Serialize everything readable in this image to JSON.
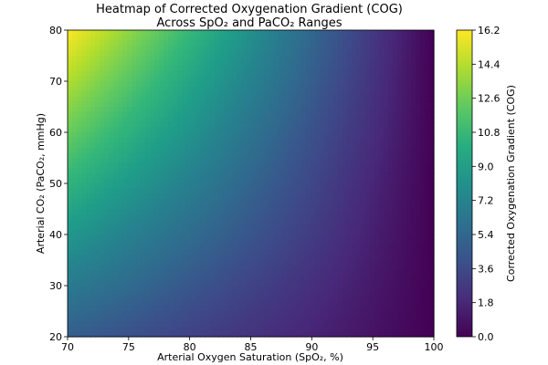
{
  "chart_data": {
    "type": "heatmap",
    "title_lines": [
      "Heatmap of Corrected Oxygenation Gradient (COG)",
      "Across SpO₂ and PaCO₂ Ranges"
    ],
    "xlabel": "Arterial Oxygen Saturation (SpO₂, %)",
    "ylabel": "Arterial CO₂ (PaCO₂, mmHg)",
    "colorbar_label": "Corrected Oxygenation Gradient (COG)",
    "colormap": "viridis",
    "xlim": [
      70,
      100
    ],
    "ylim": [
      20,
      80
    ],
    "x_ticks": [
      "70",
      "75",
      "80",
      "85",
      "90",
      "95",
      "100"
    ],
    "y_ticks": [
      "20",
      "30",
      "40",
      "50",
      "60",
      "70",
      "80"
    ],
    "colorbar_ticks": [
      "0.0",
      "1.8",
      "3.6",
      "5.4",
      "7.2",
      "9.0",
      "10.8",
      "12.6",
      "14.4",
      "16.2"
    ],
    "value_range": [
      0.0,
      16.2
    ],
    "x": [
      70,
      75,
      80,
      85,
      90,
      95,
      100
    ],
    "y": [
      20,
      30,
      40,
      50,
      60,
      70,
      80
    ],
    "values": [
      [
        4.8,
        4.0,
        3.2,
        2.4,
        1.6,
        0.8,
        0.0
      ],
      [
        6.7,
        5.6,
        4.4,
        3.3,
        2.2,
        1.1,
        0.0
      ],
      [
        8.6,
        7.1,
        5.7,
        4.3,
        2.9,
        1.4,
        0.0
      ],
      [
        10.5,
        8.7,
        7.0,
        5.2,
        3.5,
        1.7,
        0.0
      ],
      [
        12.4,
        10.3,
        8.3,
        6.2,
        4.1,
        2.1,
        0.0
      ],
      [
        14.3,
        11.9,
        9.5,
        7.2,
        4.8,
        2.4,
        0.0
      ],
      [
        16.2,
        13.5,
        10.8,
        8.1,
        5.4,
        2.7,
        0.0
      ]
    ]
  }
}
